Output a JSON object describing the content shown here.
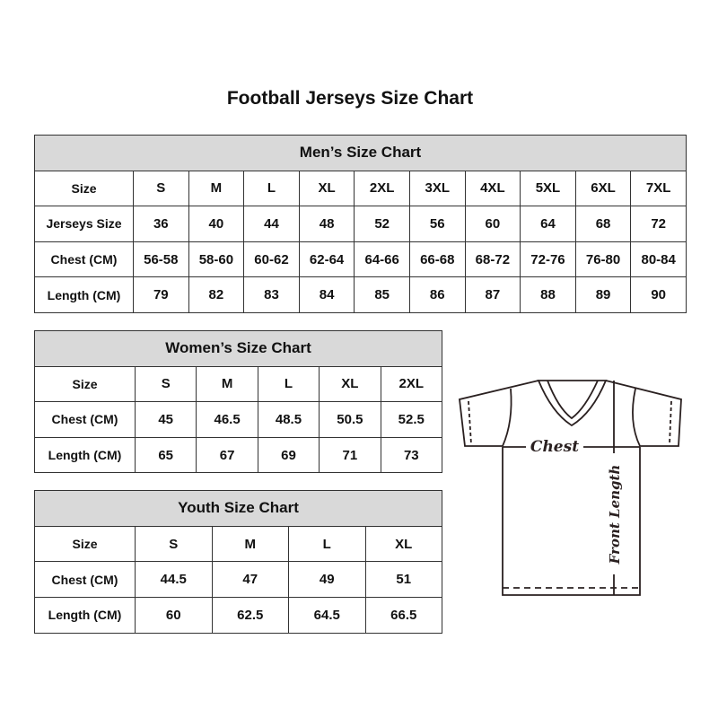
{
  "title": "Football Jerseys Size Chart",
  "men": {
    "header": "Men’s Size Chart",
    "rows": [
      {
        "label": "Size",
        "values": [
          "S",
          "M",
          "L",
          "XL",
          "2XL",
          "3XL",
          "4XL",
          "5XL",
          "6XL",
          "7XL"
        ]
      },
      {
        "label": "Jerseys Size",
        "values": [
          "36",
          "40",
          "44",
          "48",
          "52",
          "56",
          "60",
          "64",
          "68",
          "72"
        ]
      },
      {
        "label": "Chest (CM)",
        "values": [
          "56-58",
          "58-60",
          "60-62",
          "62-64",
          "64-66",
          "66-68",
          "68-72",
          "72-76",
          "76-80",
          "80-84"
        ]
      },
      {
        "label": "Length (CM)",
        "values": [
          "79",
          "82",
          "83",
          "84",
          "85",
          "86",
          "87",
          "88",
          "89",
          "90"
        ]
      }
    ]
  },
  "women": {
    "header": "Women’s Size Chart",
    "rows": [
      {
        "label": "Size",
        "values": [
          "S",
          "M",
          "L",
          "XL",
          "2XL"
        ]
      },
      {
        "label": "Chest (CM)",
        "values": [
          "45",
          "46.5",
          "48.5",
          "50.5",
          "52.5"
        ]
      },
      {
        "label": "Length (CM)",
        "values": [
          "65",
          "67",
          "69",
          "71",
          "73"
        ]
      }
    ]
  },
  "youth": {
    "header": "Youth Size Chart",
    "rows": [
      {
        "label": "Size",
        "values": [
          "S",
          "M",
          "L",
          "XL"
        ]
      },
      {
        "label": "Chest (CM)",
        "values": [
          "44.5",
          "47",
          "49",
          "51"
        ]
      },
      {
        "label": "Length (CM)",
        "values": [
          "60",
          "62.5",
          "64.5",
          "66.5"
        ]
      }
    ]
  },
  "diagram": {
    "chest_label": "Chest",
    "length_label": "Front Length"
  },
  "colors": {
    "header_bg": "#d9d9d9",
    "line": "#333333"
  }
}
